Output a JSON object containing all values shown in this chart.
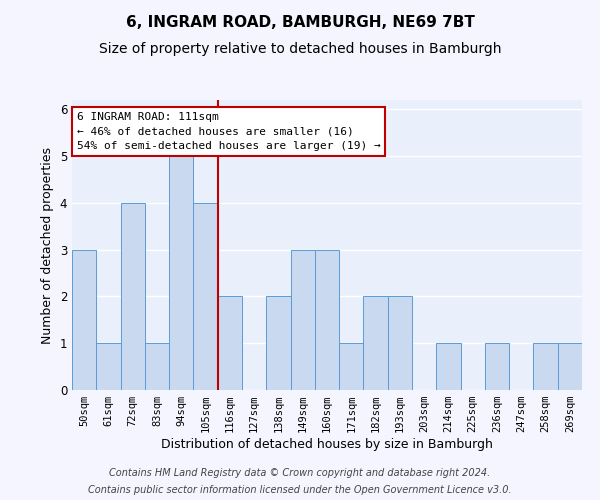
{
  "title": "6, INGRAM ROAD, BAMBURGH, NE69 7BT",
  "subtitle": "Size of property relative to detached houses in Bamburgh",
  "xlabel": "Distribution of detached houses by size in Bamburgh",
  "ylabel": "Number of detached properties",
  "categories": [
    "50sqm",
    "61sqm",
    "72sqm",
    "83sqm",
    "94sqm",
    "105sqm",
    "116sqm",
    "127sqm",
    "138sqm",
    "149sqm",
    "160sqm",
    "171sqm",
    "182sqm",
    "193sqm",
    "203sqm",
    "214sqm",
    "225sqm",
    "236sqm",
    "247sqm",
    "258sqm",
    "269sqm"
  ],
  "values": [
    3,
    1,
    4,
    1,
    5,
    4,
    2,
    0,
    2,
    3,
    3,
    1,
    2,
    2,
    0,
    1,
    0,
    1,
    0,
    1,
    1
  ],
  "bar_color": "#c9d9f0",
  "bar_edgecolor": "#5b9bd5",
  "vline_x": 5.5,
  "vline_color": "#c00000",
  "annotation_lines": [
    "6 INGRAM ROAD: 111sqm",
    "← 46% of detached houses are smaller (16)",
    "54% of semi-detached houses are larger (19) →"
  ],
  "annotation_box_edgecolor": "#c00000",
  "ylim": [
    0,
    6.2
  ],
  "yticks": [
    0,
    1,
    2,
    3,
    4,
    5,
    6
  ],
  "footer_line1": "Contains HM Land Registry data © Crown copyright and database right 2024.",
  "footer_line2": "Contains public sector information licensed under the Open Government Licence v3.0.",
  "bg_color": "#eaf0fb",
  "fig_bg_color": "#f5f5ff",
  "grid_color": "#ffffff",
  "title_fontsize": 11,
  "subtitle_fontsize": 10,
  "xlabel_fontsize": 9,
  "ylabel_fontsize": 9,
  "tick_fontsize": 7.5,
  "footer_fontsize": 7,
  "ann_fontsize": 8
}
